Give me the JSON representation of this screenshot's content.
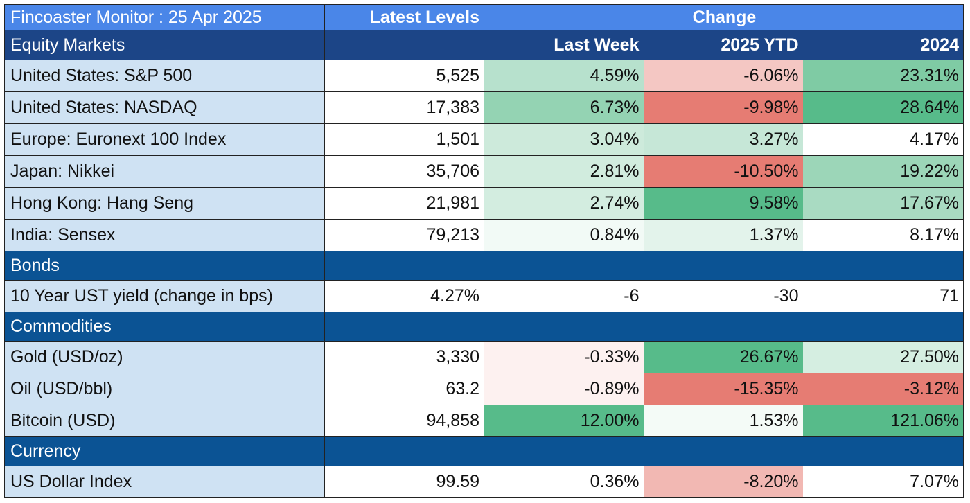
{
  "header": {
    "title": "Fincoaster Monitor : 25 Apr 2025",
    "latest_levels": "Latest Levels",
    "change": "Change"
  },
  "columns": {
    "last_week": "Last Week",
    "ytd": "2025 YTD",
    "prior_year": "2024"
  },
  "sections": [
    {
      "name": "Equity Markets",
      "rows": [
        {
          "label": "United States: S&P 500",
          "level": "5,525",
          "last_week": "4.59%",
          "ytd": "-6.06%",
          "prior_year": "23.31%",
          "colors": [
            "#b7e1cd",
            "#f4c7c3",
            "#7fcba4"
          ]
        },
        {
          "label": "United States: NASDAQ",
          "level": "17,383",
          "last_week": "6.73%",
          "ytd": "-9.98%",
          "prior_year": "28.64%",
          "colors": [
            "#94d3b3",
            "#e67c73",
            "#57bb8a"
          ]
        },
        {
          "label": "Europe: Euronext 100 Index",
          "level": "1,501",
          "last_week": "3.04%",
          "ytd": "3.27%",
          "prior_year": "4.17%",
          "colors": [
            "#cdeadb",
            "#c6e7d7",
            "#ffffff"
          ]
        },
        {
          "label": "Japan: Nikkei",
          "level": "35,706",
          "last_week": "2.81%",
          "ytd": "-10.50%",
          "prior_year": "19.22%",
          "colors": [
            "#d1ecde",
            "#e67c73",
            "#9cd6b8"
          ]
        },
        {
          "label": "Hong Kong: Hang Seng",
          "level": "21,981",
          "last_week": "2.74%",
          "ytd": "9.58%",
          "prior_year": "17.67%",
          "colors": [
            "#d3ede0",
            "#57bb8a",
            "#a9dbc2"
          ]
        },
        {
          "label": "India: Sensex",
          "level": "79,213",
          "last_week": "0.84%",
          "ytd": "1.37%",
          "prior_year": "8.17%",
          "colors": [
            "#f2faf6",
            "#e3f3eb",
            "#ffffff"
          ]
        }
      ]
    },
    {
      "name": "Bonds",
      "rows": [
        {
          "label": "10 Year UST yield (change in bps)",
          "level": "4.27%",
          "last_week": "-6",
          "ytd": "-30",
          "prior_year": "71",
          "colors": [
            "#ffffff",
            "#ffffff",
            "#ffffff"
          ]
        }
      ]
    },
    {
      "name": "Commodities",
      "rows": [
        {
          "label": "Gold (USD/oz)",
          "level": "3,330",
          "last_week": "-0.33%",
          "ytd": "26.67%",
          "prior_year": "27.50%",
          "colors": [
            "#fdf1f0",
            "#57bb8a",
            "#d5eee1"
          ]
        },
        {
          "label": "Oil (USD/bbl)",
          "level": "63.2",
          "last_week": "-0.89%",
          "ytd": "-15.35%",
          "prior_year": "-3.12%",
          "colors": [
            "#fdf1f0",
            "#e67c73",
            "#e67c73"
          ]
        },
        {
          "label": "Bitcoin (USD)",
          "level": "94,858",
          "last_week": "12.00%",
          "ytd": "1.53%",
          "prior_year": "121.06%",
          "colors": [
            "#57bb8a",
            "#f4fbf7",
            "#57bb8a"
          ]
        }
      ]
    },
    {
      "name": "Currency",
      "rows": [
        {
          "label": "US Dollar Index",
          "level": "99.59",
          "last_week": "0.36%",
          "ytd": "-8.20%",
          "prior_year": "7.07%",
          "colors": [
            "#ffffff",
            "#f2b8b3",
            "#ffffff"
          ]
        }
      ]
    }
  ]
}
